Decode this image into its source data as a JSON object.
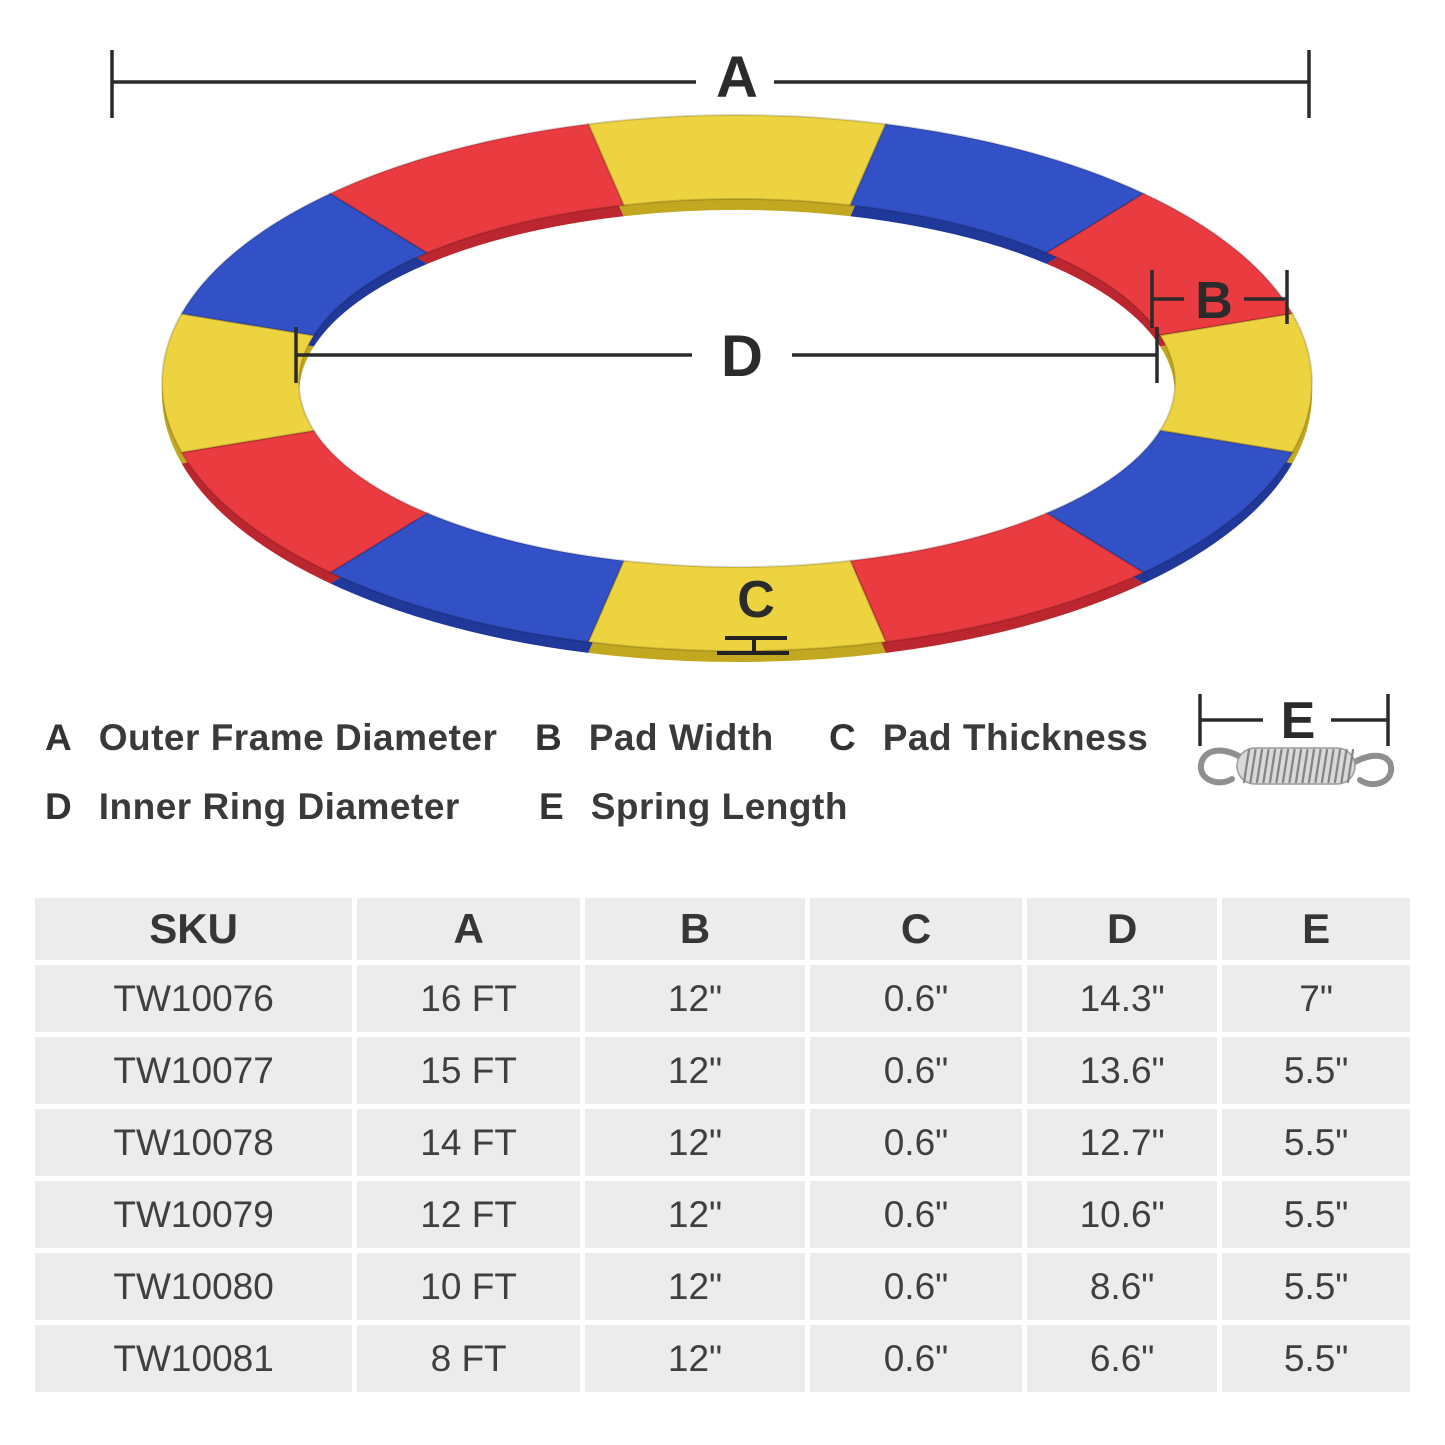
{
  "diagram": {
    "dim_labels": {
      "A": "A",
      "B": "B",
      "C": "C",
      "D": "D",
      "E": "E"
    },
    "ring": {
      "pattern": [
        "yellow",
        "blue",
        "red"
      ],
      "colors": {
        "yellow": "#EDD33F",
        "blue": "#3251C6",
        "red": "#EA3B41"
      },
      "shadow_colors": {
        "yellow": "#C2A820",
        "blue": "#21389B",
        "red": "#BC272F"
      }
    }
  },
  "legend": {
    "rows": [
      [
        {
          "key": "A",
          "label": "Outer Frame Diameter"
        },
        {
          "key": "B",
          "label": "Pad Width"
        },
        {
          "key": "C",
          "label": "Pad Thickness"
        }
      ],
      [
        {
          "key": "D",
          "label": "Inner Ring Diameter"
        },
        {
          "key": "E",
          "label": "Spring Length"
        }
      ]
    ]
  },
  "table": {
    "headers": [
      "SKU",
      "A",
      "B",
      "C",
      "D",
      "E"
    ],
    "rows": [
      [
        "TW10076",
        "16 FT",
        "12\"",
        "0.6\"",
        "14.3\"",
        "7\""
      ],
      [
        "TW10077",
        "15 FT",
        "12\"",
        "0.6\"",
        "13.6\"",
        "5.5\""
      ],
      [
        "TW10078",
        "14 FT",
        "12\"",
        "0.6\"",
        "12.7\"",
        "5.5\""
      ],
      [
        "TW10079",
        "12 FT",
        "12\"",
        "0.6\"",
        "10.6\"",
        "5.5\""
      ],
      [
        "TW10080",
        "10 FT",
        "12\"",
        "0.6\"",
        "8.6\"",
        "5.5\""
      ],
      [
        "TW10081",
        "8 FT",
        "12\"",
        "0.6\"",
        "6.6\"",
        "5.5\""
      ]
    ]
  }
}
